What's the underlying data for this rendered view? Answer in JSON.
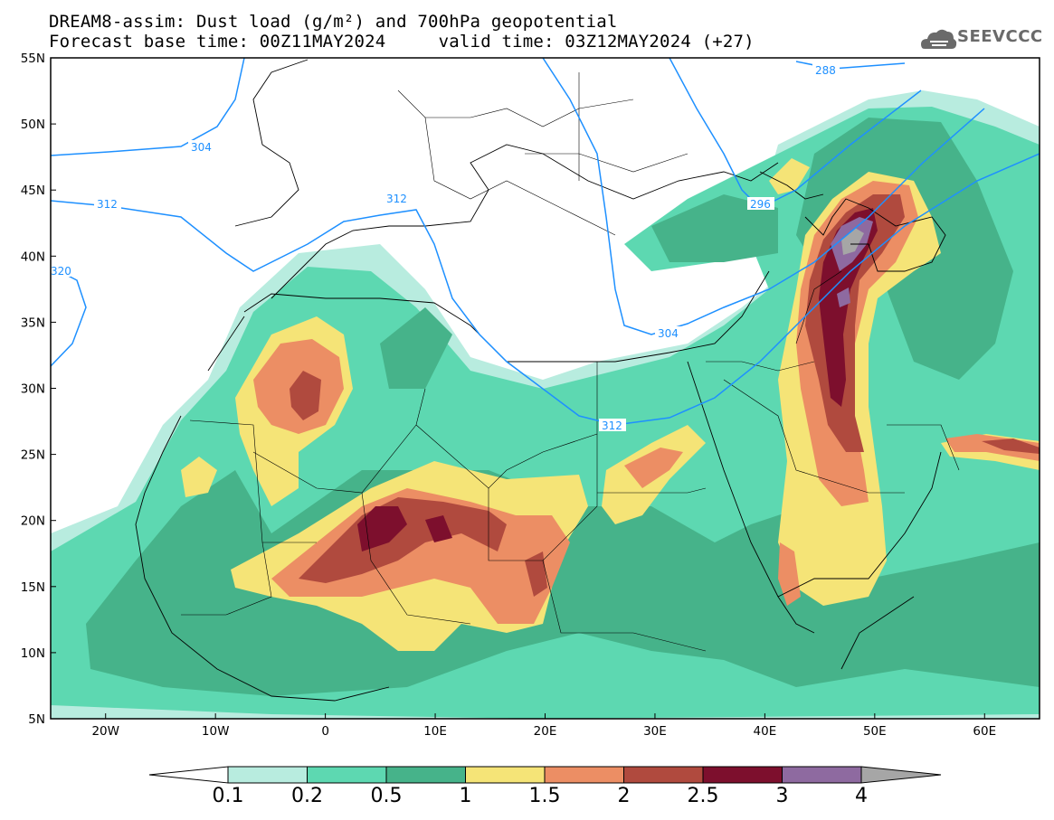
{
  "header": {
    "title_line1": "DREAM8-assim: Dust load (g/m²) and 700hPa geopotential",
    "title_line2": "Forecast base time: 00Z11MAY2024     valid time: 03Z12MAY2024 (+27)",
    "logo_text": "SEEVCCC"
  },
  "map": {
    "lat_range": [
      5,
      55
    ],
    "lon_range": [
      -25,
      65
    ],
    "lat_ticks": [
      "55N",
      "50N",
      "45N",
      "40N",
      "35N",
      "30N",
      "25N",
      "20N",
      "15N",
      "10N",
      "5N"
    ],
    "lon_ticks": [
      "20W",
      "10W",
      "0",
      "10E",
      "20E",
      "30E",
      "40E",
      "50E",
      "60E"
    ],
    "contour_labels": [
      "288",
      "296",
      "304",
      "312",
      "304",
      "312",
      "312",
      "320"
    ],
    "contour_color": "#1e90ff"
  },
  "colorbar": {
    "labels": [
      "0.1",
      "0.2",
      "0.5",
      "1",
      "1.5",
      "2",
      "2.5",
      "3",
      "4"
    ],
    "colors": [
      "#b8ecdf",
      "#5dd8b1",
      "#46b38a",
      "#f5e477",
      "#ec8e64",
      "#b04a3e",
      "#7d0f2d",
      "#8e6aa0",
      "#a6a6a6"
    ]
  },
  "chart_data": {
    "type": "heatmap",
    "title": "DREAM8-assim: Dust load (g/m²) and 700hPa geopotential",
    "variable": "Dust load (g/m²)",
    "overlay": "700hPa geopotential (dam) contours: 288, 296, 304, 312, 320",
    "levels": [
      0.1,
      0.2,
      0.5,
      1,
      1.5,
      2,
      2.5,
      3,
      4
    ],
    "x_range": [
      -25,
      65
    ],
    "y_range": [
      5,
      55
    ]
  }
}
